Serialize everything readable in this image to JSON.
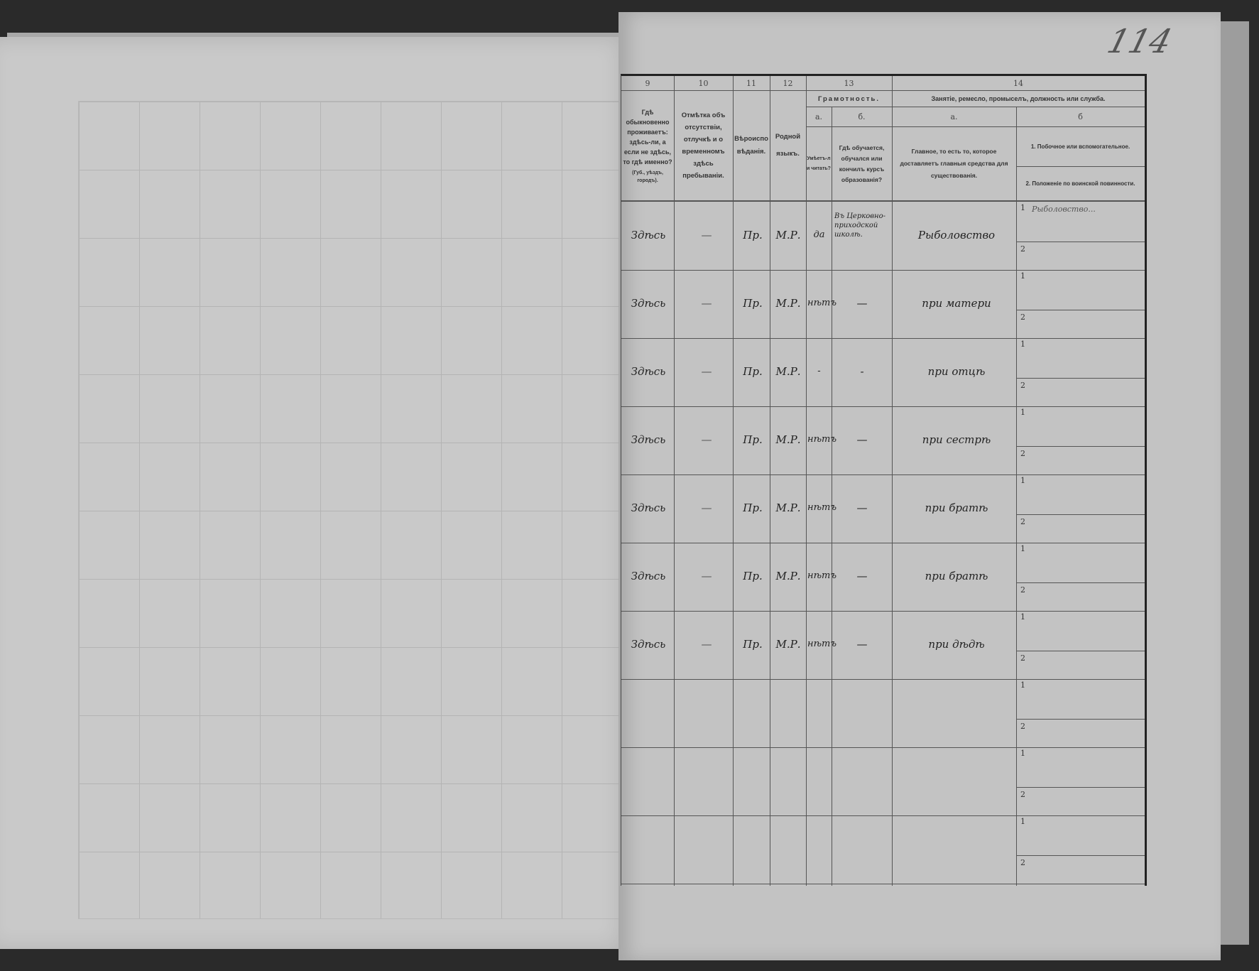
{
  "page_number": "114",
  "columns": {
    "c9": {
      "num": "9",
      "label": "Гдѣ обыкновенно проживаетъ: здѣсь-ли, а если не здѣсь, то гдѣ именно?",
      "note": "(Губ., уѣздъ, городъ)."
    },
    "c10": {
      "num": "10",
      "label": "Отмѣтка объ отсутствіи, отлучкѣ и о временномъ здѣсь пребываніи."
    },
    "c11": {
      "num": "11",
      "label": "Вѣроисповѣданія."
    },
    "c12": {
      "num": "12",
      "label": "Родной языкъ."
    },
    "c13": {
      "num": "13",
      "label": "Грамотность.",
      "a": "а.",
      "a_label": "Умѣетъ-ли читать?",
      "b": "б.",
      "b_label": "Гдѣ обучается, обучался или кончилъ курсъ образованія?"
    },
    "c14": {
      "num": "14",
      "label": "Занятіе, ремесло, промыселъ, должность или служба.",
      "a": "а.",
      "a_label": "Главное, то есть то, которое доставляетъ главныя средства для существованія.",
      "b": "б",
      "b1_label": "1. Побочное или вспомогательное.",
      "b2_label": "2. Положеніе по воинской повинности."
    }
  },
  "rows": [
    {
      "residence": "Здѣсь",
      "absence": "—",
      "religion": "Пр.",
      "language": "М.Р.",
      "literate": "да",
      "education": "Въ Церковно-приходской школѣ.",
      "occupation": "Рыболовство",
      "side": "Рыболовство..."
    },
    {
      "residence": "Здѣсь",
      "absence": "—",
      "religion": "Пр.",
      "language": "М.Р.",
      "literate": "нѣтъ",
      "education": "—",
      "occupation": "при матери",
      "side": ""
    },
    {
      "residence": "Здѣсь",
      "absence": "—",
      "religion": "Пр.",
      "language": "М.Р.",
      "literate": "-",
      "education": "-",
      "occupation": "при отцѣ",
      "side": ""
    },
    {
      "residence": "Здѣсь",
      "absence": "—",
      "religion": "Пр.",
      "language": "М.Р.",
      "literate": "нѣтъ",
      "education": "—",
      "occupation": "при сестрѣ",
      "side": ""
    },
    {
      "residence": "Здѣсь",
      "absence": "—",
      "religion": "Пр.",
      "language": "М.Р.",
      "literate": "нѣтъ",
      "education": "—",
      "occupation": "при братѣ",
      "side": ""
    },
    {
      "residence": "Здѣсь",
      "absence": "—",
      "religion": "Пр.",
      "language": "М.Р.",
      "literate": "нѣтъ",
      "education": "—",
      "occupation": "при братѣ",
      "side": ""
    },
    {
      "residence": "Здѣсь",
      "absence": "—",
      "religion": "Пр.",
      "language": "М.Р.",
      "literate": "нѣтъ",
      "education": "—",
      "occupation": "при дѣдѣ",
      "side": ""
    },
    {
      "residence": "",
      "absence": "",
      "religion": "",
      "language": "",
      "literate": "",
      "education": "",
      "occupation": "",
      "side": ""
    },
    {
      "residence": "",
      "absence": "",
      "religion": "",
      "language": "",
      "literate": "",
      "education": "",
      "occupation": "",
      "side": ""
    },
    {
      "residence": "",
      "absence": "",
      "religion": "",
      "language": "",
      "literate": "",
      "education": "",
      "occupation": "",
      "side": ""
    }
  ],
  "sub_labels": {
    "one": "1",
    "two": "2"
  }
}
